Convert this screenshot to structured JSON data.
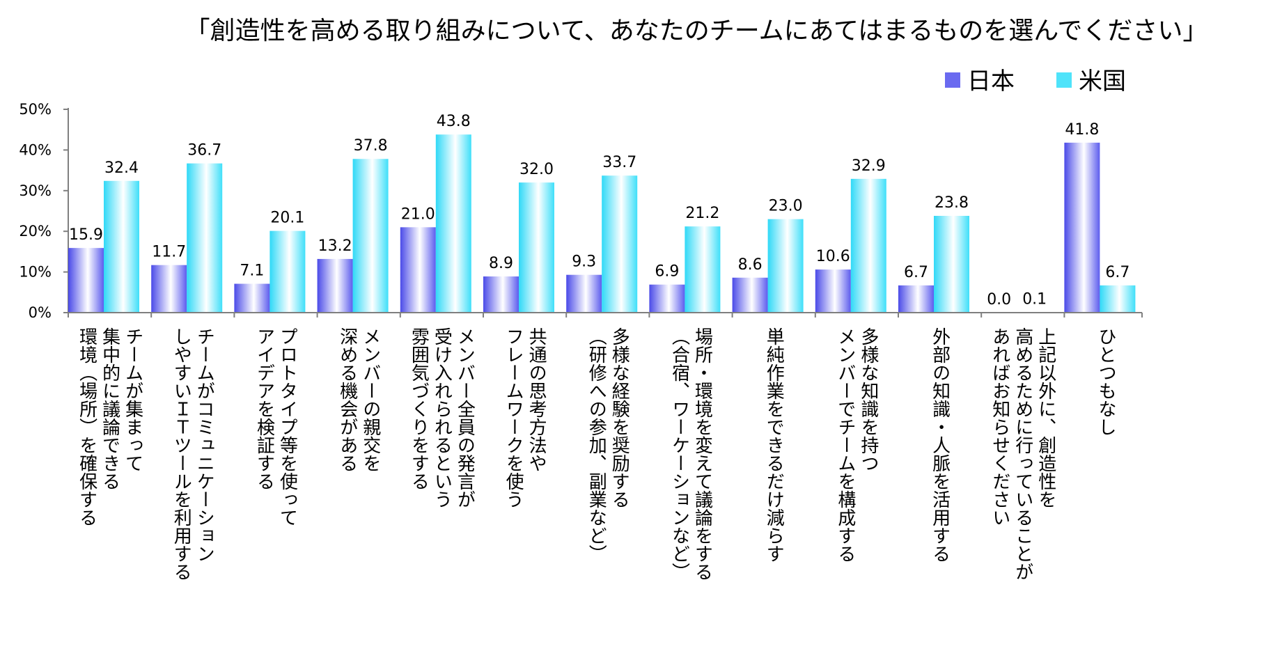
{
  "chart_data": {
    "type": "bar",
    "title": "「創造性を高める取り組みについて、あなたのチームにあてはまるものを選んでください」",
    "xlabel": "",
    "ylabel": "",
    "ylim": [
      0,
      50
    ],
    "yticks": [
      0,
      10,
      20,
      30,
      40,
      50
    ],
    "ytick_labels": [
      "0%",
      "10%",
      "20%",
      "30%",
      "40%",
      "50%"
    ],
    "grid": false,
    "legend_position": "top-right",
    "colors": {
      "series_0": "#6A6AF0",
      "series_1": "#4FE3FA",
      "axis": "#7F7F7F"
    },
    "categories": [
      [
        "チームが集まって",
        "集中的に議論できる",
        "環境（場所）を確保する"
      ],
      [
        "チームがコミュニケーション",
        "しやすいＩＴツールを利用する"
      ],
      [
        "プロトタイプ等を使って",
        "アイデアを検証する"
      ],
      [
        "メンバーの親交を",
        "深める機会がある"
      ],
      [
        "メンバー全員の発言が",
        "受け入れられるという",
        "雰囲気づくりをする"
      ],
      [
        "共通の思考方法や",
        "フレームワークを使う"
      ],
      [
        "多様な経験を奨励する",
        "（研修への参加、副業など）"
      ],
      [
        "場所・環境を変えて議論をする",
        "（合宿、ワーケーションなど）"
      ],
      [
        "単純作業をできるだけ減らす"
      ],
      [
        "多様な知識を持つ",
        "メンバーでチームを構成する"
      ],
      [
        "外部の知識・人脈を活用する"
      ],
      [
        "上記以外に、創造性を",
        "高めるために行っていることが",
        "あればお知らせください"
      ],
      [
        "ひとつもなし"
      ]
    ],
    "series": [
      {
        "name": "日本",
        "values": [
          15.9,
          11.7,
          7.1,
          13.2,
          21.0,
          8.9,
          9.3,
          6.9,
          8.6,
          10.6,
          6.7,
          0.0,
          41.8
        ],
        "labels": [
          "15.9",
          "11.7",
          "7.1",
          "13.2",
          "21.0",
          "8.9",
          "9.3",
          "6.9",
          "8.6",
          "10.6",
          "6.7",
          "0.0",
          "41.8"
        ]
      },
      {
        "name": "米国",
        "values": [
          32.4,
          36.7,
          20.1,
          37.8,
          43.8,
          32.0,
          33.7,
          21.2,
          23.0,
          32.9,
          23.8,
          0.1,
          6.7
        ],
        "labels": [
          "32.4",
          "36.7",
          "20.1",
          "37.8",
          "43.8",
          "32.0",
          "33.7",
          "21.2",
          "23.0",
          "32.9",
          "23.8",
          "0.1",
          "6.7"
        ]
      }
    ]
  }
}
